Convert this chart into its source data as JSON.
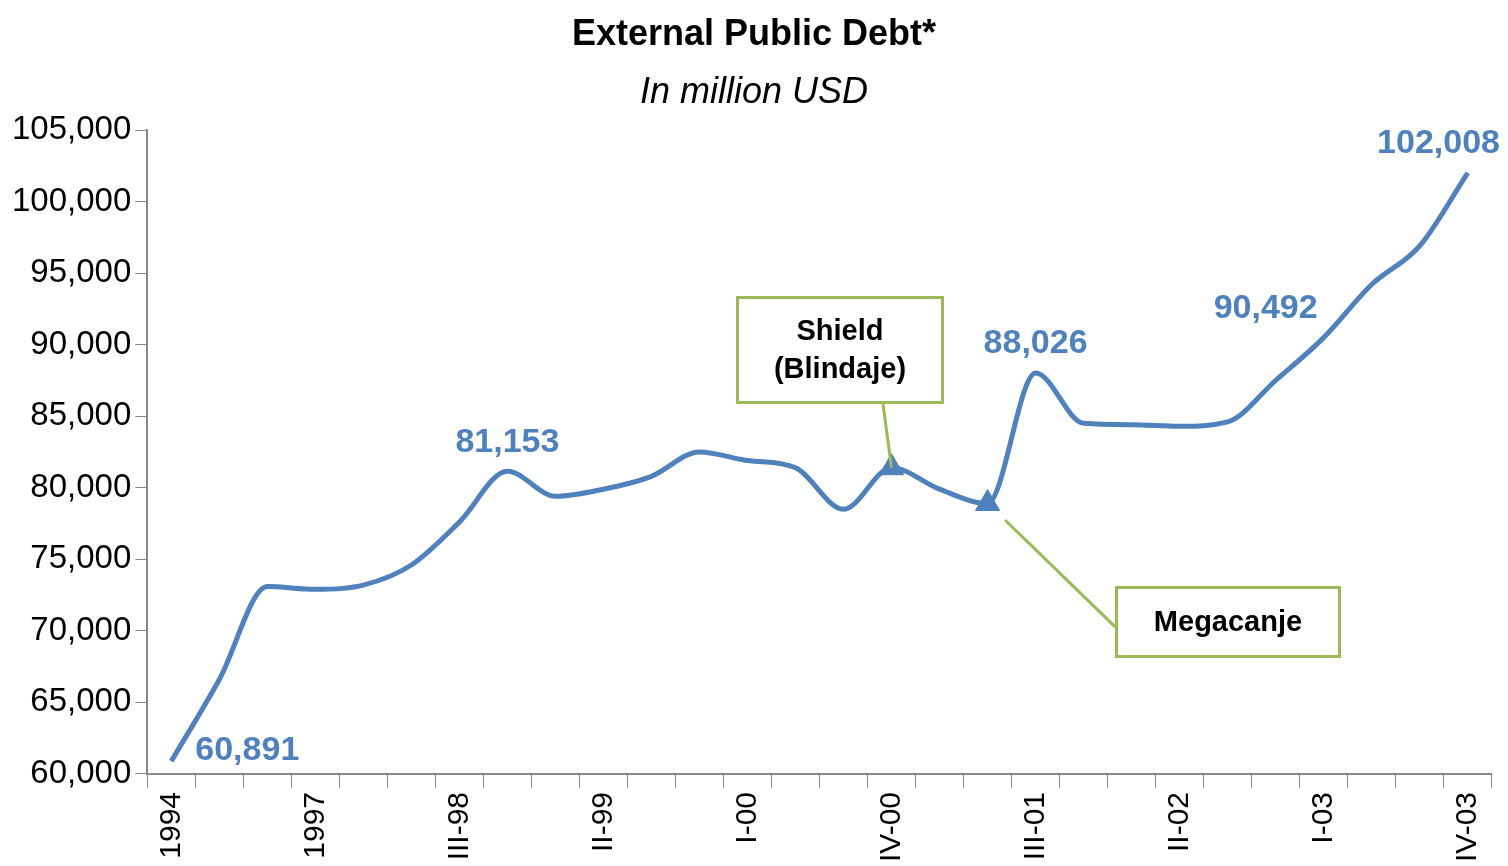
{
  "chart_data": {
    "type": "line",
    "title": "External Public Debt*",
    "subtitle": "In million USD",
    "categories": [
      "1994",
      null,
      null,
      "1997",
      null,
      null,
      "III-98",
      null,
      null,
      "II-99",
      null,
      null,
      "I-00",
      null,
      null,
      "IV-00",
      null,
      null,
      "III-01",
      null,
      null,
      "II-02",
      null,
      null,
      "I-03",
      null,
      null,
      "IV-03"
    ],
    "series": [
      {
        "type": "line",
        "color": "#4f81bd",
        "marker": "none",
        "values": [
          60891,
          66600,
          73100,
          72900,
          73200,
          74600,
          77600,
          81153,
          79400,
          79900,
          80800,
          82500,
          81900,
          81400,
          78500,
          81400,
          79900,
          78900,
          88026,
          84500,
          84400,
          84300,
          84600,
          87500,
          90492,
          94200,
          96900,
          102008
        ],
        "value_labels": [
          "60,891",
          null,
          null,
          null,
          null,
          null,
          null,
          "81,153",
          null,
          null,
          null,
          null,
          null,
          null,
          null,
          null,
          null,
          null,
          "88,026",
          null,
          null,
          null,
          null,
          null,
          "90,492",
          null,
          null,
          "102,008"
        ]
      },
      {
        "type": "scatter",
        "color": "#4f81bd",
        "marker": "triangle",
        "values": [
          null,
          null,
          null,
          null,
          null,
          null,
          null,
          null,
          null,
          null,
          null,
          null,
          null,
          null,
          null,
          81400,
          null,
          78900,
          null,
          null,
          null,
          null,
          null,
          null,
          null,
          null,
          null,
          null
        ]
      }
    ],
    "ylim": [
      60000,
      105000
    ],
    "yticks": [
      {
        "value": 60000,
        "label": "60,000"
      },
      {
        "value": 65000,
        "label": "65,000"
      },
      {
        "value": 70000,
        "label": "70,000"
      },
      {
        "value": 75000,
        "label": "75,000"
      },
      {
        "value": 80000,
        "label": "80,000"
      },
      {
        "value": 85000,
        "label": "85,000"
      },
      {
        "value": 90000,
        "label": "90,000"
      },
      {
        "value": 95000,
        "label": "95,000"
      },
      {
        "value": 100000,
        "label": "100,000"
      },
      {
        "value": 105000,
        "label": "105,000"
      }
    ],
    "grid": false,
    "annotations": [
      {
        "text": "Shield (Blindaje)",
        "x": "IV-00",
        "y": 81400
      },
      "Megacanje"
    ]
  }
}
